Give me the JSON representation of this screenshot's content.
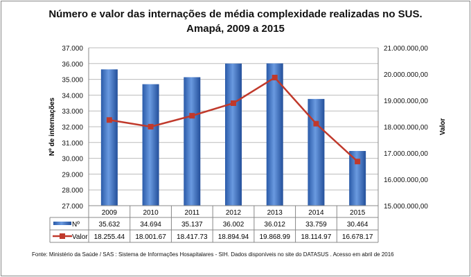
{
  "chart_data": {
    "type": "bar+line",
    "title": "Número e valor das internações de média complexidade realizadas no SUS.",
    "subtitle": "Amapá, 2009 a 2015",
    "categories": [
      "2009",
      "2010",
      "2011",
      "2012",
      "2013",
      "2014",
      "2015"
    ],
    "series": [
      {
        "name": "Nº",
        "type": "bar",
        "axis": "left",
        "color": "#3a6fc4",
        "values": [
          35632,
          34694,
          35137,
          36002,
          36012,
          33759,
          30464
        ],
        "labels": [
          "35.632",
          "34.694",
          "35.137",
          "36.002",
          "36.012",
          "33.759",
          "30.464"
        ]
      },
      {
        "name": "Valor",
        "type": "line",
        "axis": "right",
        "color": "#c0392b",
        "values": [
          18255440,
          18001670,
          18417730,
          18894940,
          19868990,
          18114970,
          16678170
        ],
        "labels": [
          "18.255.44",
          "18.001.67",
          "18.417.73",
          "18.894.94",
          "19.868.99",
          "18.114.97",
          "16.678.17"
        ]
      }
    ],
    "ylabel": "Nº de internações",
    "y2label": "Valor",
    "ylim": [
      27000,
      37000
    ],
    "y2lim": [
      15000000,
      21000000
    ],
    "yticks": [
      "27.000",
      "28.000",
      "29.000",
      "30.000",
      "31.000",
      "32.000",
      "33.000",
      "34.000",
      "35.000",
      "36.000",
      "37.000"
    ],
    "y2ticks": [
      "15.000.000,00",
      "16.000.000,00",
      "17.000.000,00",
      "18.000.000,00",
      "19.000.000,00",
      "20.000.000,00",
      "21.000.000,00"
    ],
    "grid": true,
    "legend": "data-table"
  },
  "source": "Fonte:  Ministério da Saúde  / SAS : Sistema de Informações Hosapitalares - SIH. Dados disponíveis no site do DATASUS . Acesso em abril de 2016"
}
